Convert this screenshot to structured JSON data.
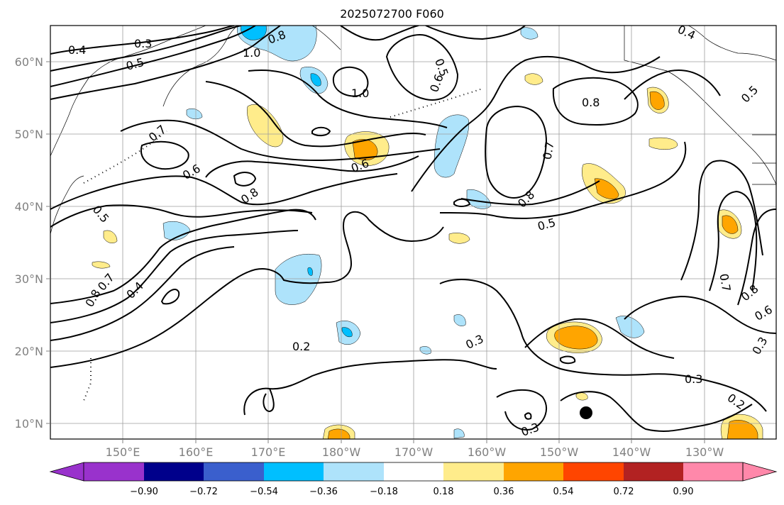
{
  "title": "2025072700 F060",
  "longitude_ticks": [
    "150°E",
    "160°E",
    "170°E",
    "180°W",
    "170°W",
    "160°W",
    "150°W",
    "140°W",
    "130°W"
  ],
  "latitude_ticks": [
    "60°N",
    "50°N",
    "40°N",
    "30°N",
    "20°N",
    "10°N"
  ],
  "colorbar": {
    "colors": [
      "#9932cc",
      "#00008b",
      "#3a5fcd",
      "#00bfff",
      "#aee3fb",
      "#ffffff",
      "#ffec8b",
      "#ffa500",
      "#ff4500",
      "#b22222",
      "#ff88aa"
    ],
    "tick_labels": [
      "−0.90",
      "−0.72",
      "−0.54",
      "−0.36",
      "−0.18",
      "0.18",
      "0.36",
      "0.54",
      "0.72",
      "0.90"
    ]
  },
  "contour_labels": [
    "0.4",
    "0.3",
    "0.5",
    "1.0",
    "0.8",
    "0.6",
    "0.7",
    "0.5",
    "0.8",
    "0.6",
    "0.4",
    "0.2",
    "0.3",
    "0.3",
    "0.3",
    "0.2",
    "0.7",
    "0.8",
    "0.6",
    "0.3",
    "0.5",
    "0.8",
    "0.5",
    "0.4",
    "1.0",
    "0.5",
    "0.6",
    "0.8",
    "0.7",
    "0.7",
    "0.8"
  ],
  "shading_colors": {
    "positive_low": "#ffec8b",
    "positive_mid": "#ffa500",
    "negative_low": "#aee3fb",
    "negative_mid": "#00bfff"
  },
  "marker": {
    "name": "storm-marker",
    "lon_label": "146°W",
    "lat_label": "11°N"
  }
}
